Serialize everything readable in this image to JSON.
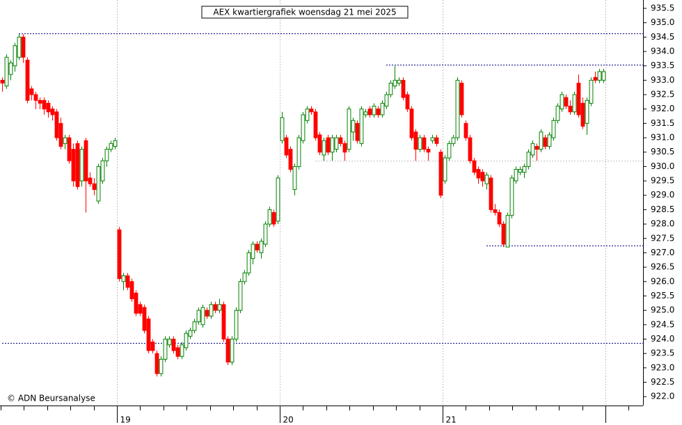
{
  "chart_data": {
    "type": "candlestick",
    "title": "AEX kwartiergrafiek woensdag 21 mei 2025",
    "watermark": "© ADN Beursanalyse",
    "up_color": "#008000",
    "down_color": "#ff0000",
    "open": [
      933.0,
      932.8,
      933.2,
      933.5,
      933.8,
      934.5,
      933.7,
      932.7,
      932.5,
      932.3,
      932.3,
      932.2,
      932.0,
      931.9,
      931.5,
      930.8,
      931.0,
      930.6,
      930.8,
      929.5,
      930.9,
      929.6,
      929.4,
      928.8,
      929.5,
      930.2,
      930.6,
      930.7,
      927.8,
      926.0,
      926.2,
      926.0,
      925.6,
      925.2,
      925.1,
      924.7,
      923.9,
      923.5,
      922.8,
      923.3,
      923.8,
      924.0,
      923.7,
      923.4,
      923.7,
      924.1,
      924.3,
      924.6,
      924.5,
      925.0,
      924.8,
      925.2,
      925.0,
      925.2,
      924.0,
      923.2,
      924.0,
      925.0,
      926.0,
      926.3,
      926.8,
      927.3,
      927.0,
      927.3,
      928.0,
      928.4,
      928.1,
      930.9,
      931.0,
      930.6,
      929.2,
      930.0,
      930.9,
      931.6,
      932.0,
      931.9,
      931.1,
      930.4,
      931.0,
      930.5,
      930.6,
      931.0,
      930.8,
      930.6,
      931.2,
      931.5,
      930.8,
      931.8,
      932.0,
      931.8,
      932.0,
      931.8,
      932.1,
      932.5,
      932.8,
      932.9,
      933.0,
      932.5,
      932.0,
      931.2,
      930.6,
      931.0,
      930.6,
      930.9,
      931.0,
      930.5,
      929.5,
      930.3,
      930.8,
      931.0,
      932.9,
      931.5,
      931.0,
      930.2,
      929.9,
      929.8,
      929.4,
      929.6,
      928.5,
      928.4,
      928.0,
      927.2,
      928.3,
      929.5,
      929.8,
      929.8,
      930.0,
      930.4,
      930.7,
      930.6,
      931.0,
      930.7,
      931.0,
      931.6,
      932.0,
      932.4,
      932.1,
      931.9,
      932.9,
      932.2,
      931.5,
      932.2,
      933.1,
      933.0,
      933.0
    ],
    "high": [
      933.1,
      933.9,
      933.7,
      934.3,
      934.6,
      934.6,
      933.8,
      932.8,
      932.6,
      932.4,
      932.4,
      932.3,
      932.1,
      932.0,
      931.7,
      931.1,
      931.1,
      930.8,
      930.9,
      930.7,
      931.0,
      929.8,
      929.6,
      930.1,
      930.3,
      930.7,
      930.9,
      931.0,
      927.9,
      926.3,
      926.3,
      926.1,
      925.7,
      925.3,
      925.2,
      924.8,
      924.0,
      923.6,
      923.4,
      924.1,
      924.1,
      924.1,
      923.8,
      923.9,
      924.3,
      924.4,
      924.7,
      925.1,
      925.2,
      925.1,
      925.3,
      925.3,
      925.4,
      925.3,
      924.1,
      924.1,
      925.1,
      926.1,
      926.4,
      927.1,
      927.4,
      927.4,
      927.5,
      928.1,
      928.6,
      928.5,
      929.7,
      931.9,
      931.1,
      930.7,
      930.1,
      931.1,
      931.9,
      932.1,
      932.1,
      932.0,
      931.2,
      931.0,
      931.1,
      931.1,
      931.1,
      931.1,
      930.9,
      932.1,
      931.7,
      931.6,
      932.1,
      932.0,
      932.1,
      932.2,
      932.1,
      932.3,
      932.6,
      933.0,
      933.5,
      933.1,
      933.1,
      932.6,
      932.1,
      931.3,
      931.1,
      931.1,
      930.7,
      931.1,
      931.1,
      930.6,
      930.4,
      930.9,
      931.1,
      933.1,
      933.0,
      931.6,
      931.1,
      930.3,
      930.0,
      929.9,
      929.8,
      929.7,
      928.7,
      928.5,
      928.1,
      928.4,
      929.7,
      930.0,
      930.0,
      930.1,
      930.6,
      930.9,
      930.8,
      931.3,
      931.1,
      931.2,
      931.7,
      932.2,
      932.6,
      932.5,
      932.3,
      932.6,
      933.2,
      932.4,
      932.4,
      933.1,
      933.3,
      933.4,
      933.4
    ],
    "low": [
      932.6,
      932.7,
      933.0,
      933.3,
      933.7,
      933.6,
      932.2,
      932.3,
      932.0,
      932.0,
      931.8,
      931.7,
      931.6,
      930.9,
      930.6,
      930.6,
      930.1,
      929.3,
      929.2,
      929.3,
      928.4,
      929.3,
      929.0,
      928.7,
      929.4,
      930.0,
      930.5,
      930.6,
      926.0,
      925.7,
      925.7,
      925.3,
      924.8,
      924.8,
      924.2,
      923.5,
      923.5,
      922.7,
      922.7,
      923.2,
      923.7,
      923.5,
      923.3,
      923.3,
      923.6,
      924.0,
      924.2,
      924.5,
      924.4,
      924.7,
      924.7,
      924.9,
      924.9,
      923.9,
      923.1,
      923.1,
      923.9,
      924.9,
      925.9,
      926.2,
      926.6,
      927.0,
      926.8,
      927.2,
      927.9,
      927.9,
      928.0,
      930.8,
      930.3,
      929.8,
      929.0,
      929.9,
      930.8,
      931.5,
      931.8,
      930.9,
      930.4,
      930.2,
      930.4,
      930.2,
      930.5,
      930.7,
      930.2,
      930.5,
      930.9,
      930.8,
      930.7,
      931.7,
      931.7,
      931.7,
      931.7,
      931.7,
      932.0,
      932.4,
      932.7,
      932.8,
      932.3,
      931.9,
      930.9,
      930.2,
      930.5,
      930.5,
      930.2,
      930.8,
      930.7,
      928.9,
      929.4,
      930.2,
      930.7,
      930.9,
      931.7,
      930.9,
      930.1,
      929.7,
      929.4,
      929.3,
      929.2,
      928.4,
      928.3,
      927.9,
      927.2,
      927.2,
      928.2,
      929.4,
      929.7,
      929.6,
      929.9,
      930.3,
      930.2,
      930.5,
      930.6,
      930.6,
      930.9,
      931.5,
      931.9,
      932.0,
      931.8,
      931.8,
      931.7,
      931.3,
      931.1,
      932.1,
      932.9,
      932.9,
      932.9
    ],
    "close": [
      932.9,
      933.8,
      933.6,
      934.2,
      934.5,
      933.8,
      932.3,
      932.5,
      932.3,
      932.2,
      932.0,
      931.9,
      931.8,
      931.0,
      930.7,
      931.0,
      930.2,
      929.5,
      929.3,
      930.6,
      929.5,
      929.4,
      929.2,
      930.0,
      930.2,
      930.6,
      930.8,
      930.9,
      926.1,
      926.2,
      925.8,
      925.4,
      924.9,
      924.9,
      924.3,
      923.6,
      923.6,
      922.8,
      923.3,
      924.0,
      924.0,
      923.6,
      923.4,
      923.8,
      924.2,
      924.3,
      924.6,
      925.0,
      925.1,
      924.8,
      925.2,
      925.0,
      925.2,
      924.0,
      923.2,
      924.0,
      925.0,
      926.0,
      926.3,
      927.0,
      927.3,
      927.1,
      927.4,
      928.0,
      928.5,
      928.0,
      929.6,
      931.7,
      930.4,
      929.9,
      930.0,
      931.0,
      931.8,
      932.0,
      931.9,
      931.0,
      930.5,
      930.9,
      930.5,
      931.0,
      931.0,
      930.8,
      930.5,
      932.0,
      931.6,
      930.9,
      932.0,
      931.9,
      931.8,
      932.1,
      931.8,
      932.2,
      932.5,
      932.9,
      933.0,
      933.0,
      932.4,
      932.0,
      931.0,
      930.6,
      931.0,
      930.6,
      930.5,
      931.0,
      930.8,
      929.0,
      930.3,
      930.8,
      931.0,
      933.0,
      931.8,
      931.0,
      930.2,
      929.8,
      929.6,
      929.5,
      929.7,
      928.5,
      928.4,
      928.0,
      927.3,
      928.3,
      929.6,
      929.9,
      929.9,
      930.0,
      930.5,
      930.8,
      930.6,
      931.2,
      930.7,
      931.1,
      931.6,
      932.1,
      932.5,
      932.1,
      931.9,
      932.5,
      931.8,
      931.4,
      932.3,
      933.0,
      933.0,
      933.3,
      933.3
    ],
    "xlim": [
      -0.5,
      153.5
    ],
    "xticks": [
      {
        "value": 27.5,
        "label": "19"
      },
      {
        "value": 66.5,
        "label": "20"
      },
      {
        "value": 105.5,
        "label": "21"
      },
      {
        "value": 144.5,
        "label": null
      }
    ],
    "ylim": [
      921.69,
      935.79
    ],
    "yticks": [
      {
        "value": 922,
        "label": "922.0"
      },
      922.5,
      {
        "value": 923,
        "label": "923.0"
      },
      923.5,
      {
        "value": 924,
        "label": "924.0"
      },
      924.5,
      {
        "value": 925,
        "label": "925.0"
      },
      925.5,
      {
        "value": 926,
        "label": "926.0"
      },
      926.5,
      {
        "value": 927,
        "label": "927.0"
      },
      927.5,
      {
        "value": 928,
        "label": "928.0"
      },
      928.5,
      {
        "value": 929,
        "label": "929.0"
      },
      929.5,
      {
        "value": 930,
        "label": "930.0"
      },
      930.5,
      {
        "value": 931,
        "label": "931.0"
      },
      931.5,
      {
        "value": 932,
        "label": "932.0"
      },
      932.5,
      {
        "value": 933,
        "label": "933.0"
      },
      933.5,
      {
        "value": 934,
        "label": "934.0"
      },
      934.5,
      {
        "value": 935,
        "label": "935.0"
      },
      935.5
    ],
    "levels": [
      {
        "value": 934.63,
        "from": 4,
        "color": "#000080"
      },
      {
        "value": 933.54,
        "from": 92,
        "color": "#000080"
      },
      {
        "value": 927.25,
        "from": 116,
        "color": "#000080"
      },
      {
        "value": 923.86,
        "from": 0,
        "color": "#000080"
      },
      {
        "value": 930.2,
        "from": 75,
        "color": "#c0c0c0"
      }
    ]
  }
}
